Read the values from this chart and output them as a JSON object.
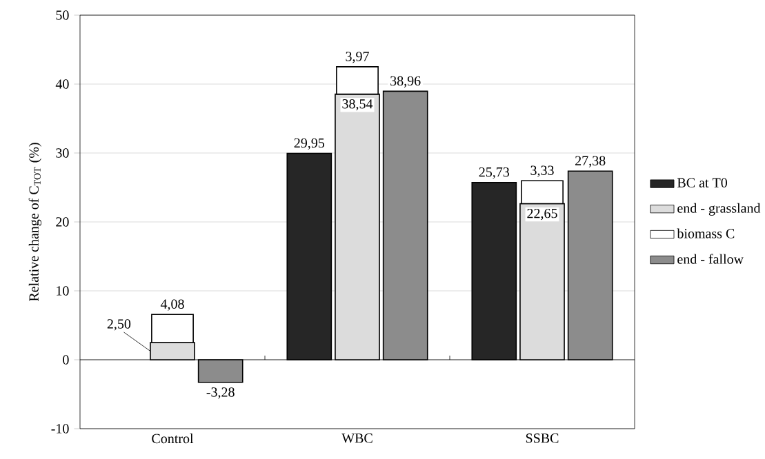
{
  "chart_data": {
    "type": "bar",
    "ylabel": "Relative change of C$_{TOT}$ (%)",
    "categories": [
      "Control",
      "WBC",
      "SSBC"
    ],
    "series": [
      {
        "name": "BC at T0",
        "color": "#262626",
        "values": [
          null,
          29.95,
          25.73
        ],
        "value_labels": [
          null,
          "29,95",
          "25,73"
        ]
      },
      {
        "name": "end - grassland",
        "color": "#dcdcdc",
        "values": [
          2.5,
          38.54,
          22.65
        ],
        "value_labels": [
          "2,50",
          "38,54",
          "22,65"
        ]
      },
      {
        "name": "biomass C",
        "color": "#ffffff",
        "values": [
          4.08,
          3.97,
          3.33
        ],
        "base": [
          2.5,
          38.54,
          22.65
        ],
        "value_labels": [
          "4,08",
          "3,97",
          "3,33"
        ]
      },
      {
        "name": "end - fallow",
        "color": "#8c8c8c",
        "values": [
          -3.28,
          38.96,
          27.38
        ],
        "value_labels": [
          "-3,28",
          "38,96",
          "27,38"
        ]
      }
    ],
    "ylim": [
      -10,
      50
    ],
    "yticks": [
      -10,
      0,
      10,
      20,
      30,
      40,
      50
    ],
    "grid": "y",
    "legend": "right"
  }
}
